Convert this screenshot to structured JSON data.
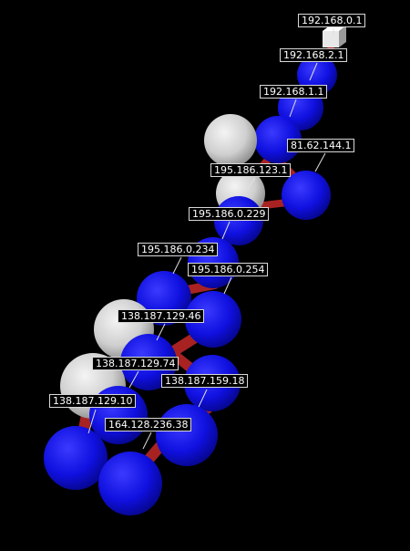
{
  "colors": {
    "background": "#000000",
    "router_node": "#1717f2",
    "host_node": "#d2d2d2",
    "link": "#a82020",
    "label_border": "#d8d8d8",
    "label_text": "#ffffff"
  },
  "labels": {
    "n1": "192.168.0.1",
    "n2": "192.168.2.1",
    "n3": "192.168.1.1",
    "n4": "81.62.144.1",
    "n5": "195.186.123.1",
    "n6": "195.186.0.229",
    "n7": "195.186.0.234",
    "n8": "195.186.0.254",
    "n9": "138.187.129.46",
    "n10": "138.187.129.74",
    "n11": "138.187.159.18",
    "n12": "138.187.129.10",
    "n13": "164.128.236.38"
  }
}
